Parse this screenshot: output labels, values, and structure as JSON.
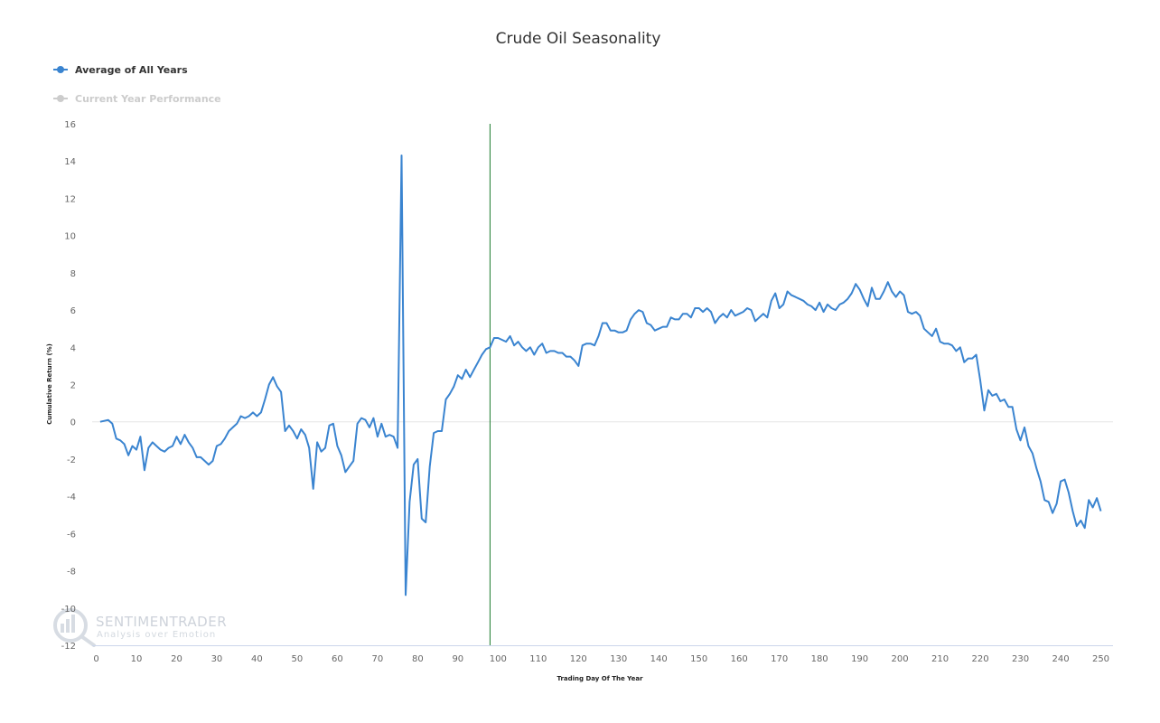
{
  "chart_data": {
    "type": "line",
    "title": "Crude Oil Seasonality",
    "xlabel": "Trading Day Of The Year",
    "ylabel": "Cumulative Return (%)",
    "xlim": [
      0,
      252
    ],
    "ylim": [
      -12,
      16
    ],
    "x_ticks": [
      0,
      10,
      20,
      30,
      40,
      50,
      60,
      70,
      80,
      90,
      100,
      110,
      120,
      130,
      140,
      150,
      160,
      170,
      180,
      190,
      200,
      210,
      220,
      230,
      240,
      250
    ],
    "y_ticks": [
      -12,
      -10,
      -8,
      -6,
      -4,
      -2,
      0,
      2,
      4,
      6,
      8,
      10,
      12,
      14,
      16
    ],
    "current_day_marker": 98,
    "legend_position": "top-left",
    "series": [
      {
        "name": "Average of All Years",
        "color": "#3a84d0",
        "visible": true,
        "points": [
          [
            1,
            0.0
          ],
          [
            2,
            0.05
          ],
          [
            3,
            0.1
          ],
          [
            4,
            -0.1
          ],
          [
            5,
            -0.9
          ],
          [
            6,
            -1.0
          ],
          [
            7,
            -1.2
          ],
          [
            8,
            -1.8
          ],
          [
            9,
            -1.3
          ],
          [
            10,
            -1.5
          ],
          [
            11,
            -0.8
          ],
          [
            12,
            -2.6
          ],
          [
            13,
            -1.4
          ],
          [
            14,
            -1.1
          ],
          [
            15,
            -1.3
          ],
          [
            16,
            -1.5
          ],
          [
            17,
            -1.6
          ],
          [
            18,
            -1.4
          ],
          [
            19,
            -1.3
          ],
          [
            20,
            -0.8
          ],
          [
            21,
            -1.2
          ],
          [
            22,
            -0.7
          ],
          [
            23,
            -1.1
          ],
          [
            24,
            -1.4
          ],
          [
            25,
            -1.9
          ],
          [
            26,
            -1.9
          ],
          [
            27,
            -2.1
          ],
          [
            28,
            -2.3
          ],
          [
            29,
            -2.1
          ],
          [
            30,
            -1.3
          ],
          [
            31,
            -1.2
          ],
          [
            32,
            -0.9
          ],
          [
            33,
            -0.5
          ],
          [
            34,
            -0.3
          ],
          [
            35,
            -0.1
          ],
          [
            36,
            0.3
          ],
          [
            37,
            0.2
          ],
          [
            38,
            0.3
          ],
          [
            39,
            0.5
          ],
          [
            40,
            0.3
          ],
          [
            41,
            0.5
          ],
          [
            42,
            1.2
          ],
          [
            43,
            2.0
          ],
          [
            44,
            2.4
          ],
          [
            45,
            1.9
          ],
          [
            46,
            1.6
          ],
          [
            47,
            -0.5
          ],
          [
            48,
            -0.2
          ],
          [
            49,
            -0.5
          ],
          [
            50,
            -0.9
          ],
          [
            51,
            -0.4
          ],
          [
            52,
            -0.7
          ],
          [
            53,
            -1.4
          ],
          [
            54,
            -3.6
          ],
          [
            55,
            -1.1
          ],
          [
            56,
            -1.6
          ],
          [
            57,
            -1.4
          ],
          [
            58,
            -0.2
          ],
          [
            59,
            -0.1
          ],
          [
            60,
            -1.3
          ],
          [
            61,
            -1.8
          ],
          [
            62,
            -2.7
          ],
          [
            63,
            -2.4
          ],
          [
            64,
            -2.1
          ],
          [
            65,
            -0.1
          ],
          [
            66,
            0.2
          ],
          [
            67,
            0.1
          ],
          [
            68,
            -0.3
          ],
          [
            69,
            0.2
          ],
          [
            70,
            -0.8
          ],
          [
            71,
            -0.1
          ],
          [
            72,
            -0.8
          ],
          [
            73,
            -0.7
          ],
          [
            74,
            -0.8
          ],
          [
            75,
            -1.4
          ],
          [
            76,
            14.3
          ],
          [
            77,
            -9.3
          ],
          [
            78,
            -4.3
          ],
          [
            79,
            -2.3
          ],
          [
            80,
            -2.0
          ],
          [
            81,
            -5.2
          ],
          [
            82,
            -5.4
          ],
          [
            83,
            -2.4
          ],
          [
            84,
            -0.6
          ],
          [
            85,
            -0.5
          ],
          [
            86,
            -0.5
          ],
          [
            87,
            1.2
          ],
          [
            88,
            1.5
          ],
          [
            89,
            1.9
          ],
          [
            90,
            2.5
          ],
          [
            91,
            2.3
          ],
          [
            92,
            2.8
          ],
          [
            93,
            2.4
          ],
          [
            94,
            2.8
          ],
          [
            95,
            3.2
          ],
          [
            96,
            3.6
          ],
          [
            97,
            3.9
          ],
          [
            98,
            4.0
          ],
          [
            99,
            4.5
          ],
          [
            100,
            4.5
          ],
          [
            101,
            4.4
          ],
          [
            102,
            4.3
          ],
          [
            103,
            4.6
          ],
          [
            104,
            4.1
          ],
          [
            105,
            4.3
          ],
          [
            106,
            4.0
          ],
          [
            107,
            3.8
          ],
          [
            108,
            4.0
          ],
          [
            109,
            3.6
          ],
          [
            110,
            4.0
          ],
          [
            111,
            4.2
          ],
          [
            112,
            3.7
          ],
          [
            113,
            3.8
          ],
          [
            114,
            3.8
          ],
          [
            115,
            3.7
          ],
          [
            116,
            3.7
          ],
          [
            117,
            3.5
          ],
          [
            118,
            3.5
          ],
          [
            119,
            3.3
          ],
          [
            120,
            3.0
          ],
          [
            121,
            4.1
          ],
          [
            122,
            4.2
          ],
          [
            123,
            4.2
          ],
          [
            124,
            4.1
          ],
          [
            125,
            4.6
          ],
          [
            126,
            5.3
          ],
          [
            127,
            5.3
          ],
          [
            128,
            4.9
          ],
          [
            129,
            4.9
          ],
          [
            130,
            4.8
          ],
          [
            131,
            4.8
          ],
          [
            132,
            4.9
          ],
          [
            133,
            5.5
          ],
          [
            134,
            5.8
          ],
          [
            135,
            6.0
          ],
          [
            136,
            5.9
          ],
          [
            137,
            5.3
          ],
          [
            138,
            5.2
          ],
          [
            139,
            4.9
          ],
          [
            140,
            5.0
          ],
          [
            141,
            5.1
          ],
          [
            142,
            5.1
          ],
          [
            143,
            5.6
          ],
          [
            144,
            5.5
          ],
          [
            145,
            5.5
          ],
          [
            146,
            5.8
          ],
          [
            147,
            5.8
          ],
          [
            148,
            5.6
          ],
          [
            149,
            6.1
          ],
          [
            150,
            6.1
          ],
          [
            151,
            5.9
          ],
          [
            152,
            6.1
          ],
          [
            153,
            5.9
          ],
          [
            154,
            5.3
          ],
          [
            155,
            5.6
          ],
          [
            156,
            5.8
          ],
          [
            157,
            5.6
          ],
          [
            158,
            6.0
          ],
          [
            159,
            5.7
          ],
          [
            160,
            5.8
          ],
          [
            161,
            5.9
          ],
          [
            162,
            6.1
          ],
          [
            163,
            6.0
          ],
          [
            164,
            5.4
          ],
          [
            165,
            5.6
          ],
          [
            166,
            5.8
          ],
          [
            167,
            5.6
          ],
          [
            168,
            6.5
          ],
          [
            169,
            6.9
          ],
          [
            170,
            6.1
          ],
          [
            171,
            6.3
          ],
          [
            172,
            7.0
          ],
          [
            173,
            6.8
          ],
          [
            174,
            6.7
          ],
          [
            175,
            6.6
          ],
          [
            176,
            6.5
          ],
          [
            177,
            6.3
          ],
          [
            178,
            6.2
          ],
          [
            179,
            6.0
          ],
          [
            180,
            6.4
          ],
          [
            181,
            5.9
          ],
          [
            182,
            6.3
          ],
          [
            183,
            6.1
          ],
          [
            184,
            6.0
          ],
          [
            185,
            6.3
          ],
          [
            186,
            6.4
          ],
          [
            187,
            6.6
          ],
          [
            188,
            6.9
          ],
          [
            189,
            7.4
          ],
          [
            190,
            7.1
          ],
          [
            191,
            6.6
          ],
          [
            192,
            6.2
          ],
          [
            193,
            7.2
          ],
          [
            194,
            6.6
          ],
          [
            195,
            6.6
          ],
          [
            196,
            7.0
          ],
          [
            197,
            7.5
          ],
          [
            198,
            7.0
          ],
          [
            199,
            6.7
          ],
          [
            200,
            7.0
          ],
          [
            201,
            6.8
          ],
          [
            202,
            5.9
          ],
          [
            203,
            5.8
          ],
          [
            204,
            5.9
          ],
          [
            205,
            5.7
          ],
          [
            206,
            5.0
          ],
          [
            207,
            4.8
          ],
          [
            208,
            4.6
          ],
          [
            209,
            5.0
          ],
          [
            210,
            4.3
          ],
          [
            211,
            4.2
          ],
          [
            212,
            4.2
          ],
          [
            213,
            4.1
          ],
          [
            214,
            3.8
          ],
          [
            215,
            4.0
          ],
          [
            216,
            3.2
          ],
          [
            217,
            3.4
          ],
          [
            218,
            3.4
          ],
          [
            219,
            3.6
          ],
          [
            220,
            2.2
          ],
          [
            221,
            0.6
          ],
          [
            222,
            1.7
          ],
          [
            223,
            1.4
          ],
          [
            224,
            1.5
          ],
          [
            225,
            1.1
          ],
          [
            226,
            1.2
          ],
          [
            227,
            0.8
          ],
          [
            228,
            0.8
          ],
          [
            229,
            -0.4
          ],
          [
            230,
            -1.0
          ],
          [
            231,
            -0.3
          ],
          [
            232,
            -1.3
          ],
          [
            233,
            -1.7
          ],
          [
            234,
            -2.5
          ],
          [
            235,
            -3.2
          ],
          [
            236,
            -4.2
          ],
          [
            237,
            -4.3
          ],
          [
            238,
            -4.9
          ],
          [
            239,
            -4.4
          ],
          [
            240,
            -3.2
          ],
          [
            241,
            -3.1
          ],
          [
            242,
            -3.8
          ],
          [
            243,
            -4.8
          ],
          [
            244,
            -5.6
          ],
          [
            245,
            -5.3
          ],
          [
            246,
            -5.7
          ],
          [
            247,
            -4.2
          ],
          [
            248,
            -4.6
          ],
          [
            249,
            -4.1
          ],
          [
            250,
            -4.8
          ]
        ]
      },
      {
        "name": "Current Year Performance",
        "color": "#cccccc",
        "visible": false,
        "points": []
      }
    ]
  },
  "watermark": {
    "brand": "SENTIMENTRADER",
    "tagline": "Analysis over Emotion"
  }
}
